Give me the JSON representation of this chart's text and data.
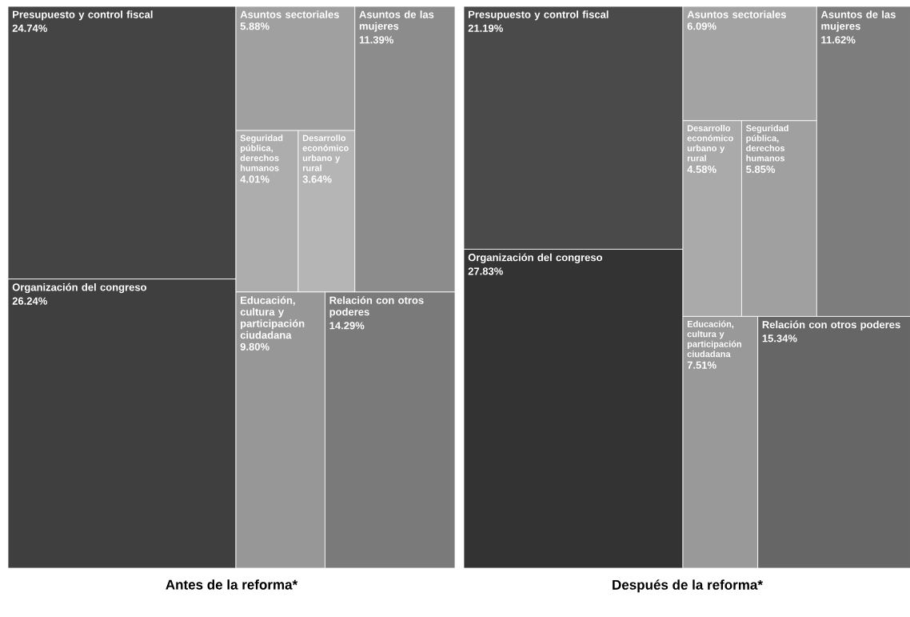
{
  "chart_data": [
    {
      "type": "other",
      "title": "Antes de la reforma*",
      "categories": [
        "Presupuesto y control fiscal",
        "Organización del congreso",
        "Asuntos sectoriales",
        "Seguridad pública, derechos humanos",
        "Desarrollo económico urbano y rural",
        "Asuntos de las mujeres",
        "Educación, cultura y participación ciudadana",
        "Relación con otros poderes"
      ],
      "values": [
        24.74,
        26.24,
        5.88,
        4.01,
        3.64,
        11.39,
        9.8,
        14.29
      ],
      "value_labels": [
        "24.74%",
        "26.24%",
        "5.88%",
        "4.01%",
        "3.64%",
        "11.39%",
        "9.80%",
        "14.29%"
      ],
      "colors": [
        "#444444",
        "#3f3f3f",
        "#a0a0a0",
        "#adadad",
        "#b5b5b5",
        "#8c8c8c",
        "#979797",
        "#7a7a7a"
      ]
    },
    {
      "type": "other",
      "title": "Después de la reforma*",
      "categories": [
        "Presupuesto y control fiscal",
        "Organización del congreso",
        "Asuntos sectoriales",
        "Desarrollo económico urbano y rural",
        "Seguridad pública, derechos humanos",
        "Asuntos de las mujeres",
        "Educación, cultura y participación ciudadana",
        "Relación con otros poderes"
      ],
      "values": [
        21.19,
        27.83,
        6.09,
        4.58,
        5.85,
        11.62,
        7.51,
        15.34
      ],
      "value_labels": [
        "21.19%",
        "27.83%",
        "6.09%",
        "4.58%",
        "5.85%",
        "11.62%",
        "7.51%",
        "15.34%"
      ],
      "colors": [
        "#4a4a4a",
        "#333333",
        "#a3a3a3",
        "#aaaaaa",
        "#a0a0a0",
        "#7d7d7d",
        "#999999",
        "#666666"
      ]
    }
  ]
}
